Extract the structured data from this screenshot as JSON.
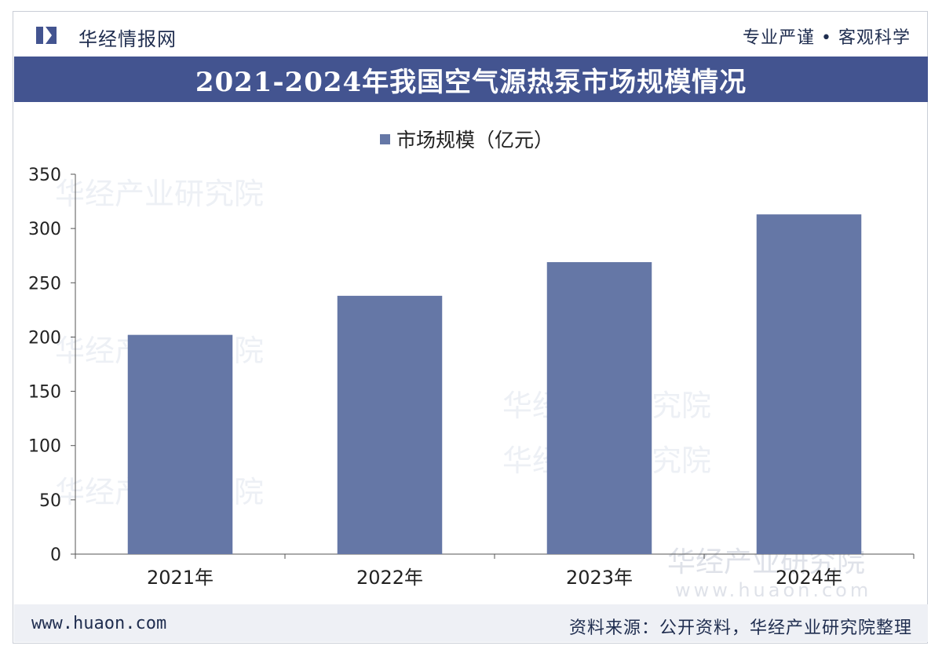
{
  "header": {
    "brand": "华经情报网",
    "slogan": "专业严谨 • 客观科学",
    "title": "2021-2024年我国空气源热泵市场规模情况"
  },
  "footer": {
    "url": "www.huaon.com",
    "source": "资料来源：公开资料，华经产业研究院整理"
  },
  "watermark": {
    "text": "华经产业研究院",
    "url": "www.huaon.com"
  },
  "colors": {
    "bar": "#6577a6",
    "title_bg": "#435490",
    "brand_text": "#1f2d4f"
  },
  "chart_data": {
    "type": "bar",
    "title": "",
    "xlabel": "",
    "ylabel": "",
    "categories": [
      "2021年",
      "2022年",
      "2023年",
      "2024年"
    ],
    "series": [
      {
        "name": "市场规模（亿元）",
        "values": [
          202,
          238,
          269,
          313
        ]
      }
    ],
    "ylim": [
      0,
      350
    ],
    "yticks": [
      0,
      50,
      100,
      150,
      200,
      250,
      300,
      350
    ],
    "legend": "top-center",
    "grid": false
  }
}
